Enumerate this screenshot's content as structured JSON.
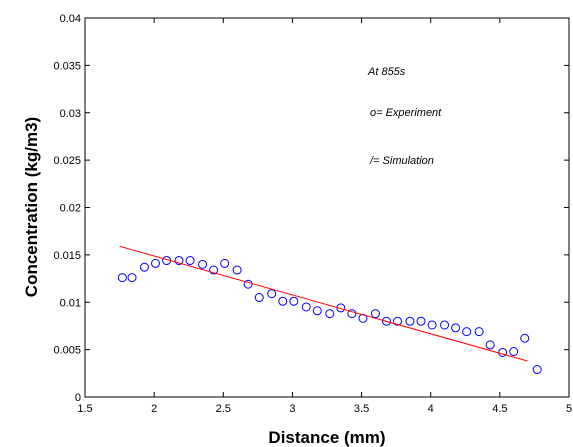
{
  "chart_data": {
    "type": "scatter",
    "title": "",
    "xlabel": "Distance (mm)",
    "ylabel": "Concentration (kg/m3)",
    "xlim": [
      1.5,
      5
    ],
    "ylim": [
      0,
      0.04
    ],
    "x_ticks": [
      "1.5",
      "2",
      "2.5",
      "3",
      "3.5",
      "4",
      "4.5",
      "5"
    ],
    "y_ticks": [
      "0",
      "0.005",
      "0.01",
      "0.015",
      "0.02",
      "0.025",
      "0.03",
      "0.035",
      "0.04"
    ],
    "grid": false,
    "annotations": [
      "At 855s",
      "o= Experiment",
      "/= Simulation"
    ],
    "series": [
      {
        "name": "Experiment",
        "style": "markers",
        "marker": "circle",
        "color": "#0000ff",
        "points": [
          [
            1.77,
            0.0126
          ],
          [
            1.84,
            0.0126
          ],
          [
            1.93,
            0.0137
          ],
          [
            2.01,
            0.0141
          ],
          [
            2.09,
            0.0144
          ],
          [
            2.18,
            0.0144
          ],
          [
            2.26,
            0.0144
          ],
          [
            2.35,
            0.014
          ],
          [
            2.43,
            0.0134
          ],
          [
            2.51,
            0.0141
          ],
          [
            2.6,
            0.0134
          ],
          [
            2.68,
            0.0119
          ],
          [
            2.76,
            0.0105
          ],
          [
            2.85,
            0.0109
          ],
          [
            2.93,
            0.0101
          ],
          [
            3.01,
            0.0101
          ],
          [
            3.1,
            0.0095
          ],
          [
            3.18,
            0.0091
          ],
          [
            3.27,
            0.0088
          ],
          [
            3.35,
            0.0094
          ],
          [
            3.43,
            0.0088
          ],
          [
            3.51,
            0.0083
          ],
          [
            3.6,
            0.0088
          ],
          [
            3.68,
            0.008
          ],
          [
            3.76,
            0.008
          ],
          [
            3.85,
            0.008
          ],
          [
            3.93,
            0.008
          ],
          [
            4.01,
            0.0076
          ],
          [
            4.1,
            0.0076
          ],
          [
            4.18,
            0.0073
          ],
          [
            4.26,
            0.0069
          ],
          [
            4.35,
            0.0069
          ],
          [
            4.43,
            0.0055
          ],
          [
            4.52,
            0.0047
          ],
          [
            4.6,
            0.0048
          ],
          [
            4.68,
            0.0062
          ],
          [
            4.77,
            0.0029
          ]
        ]
      },
      {
        "name": "Simulation",
        "style": "line",
        "color": "#ff0000",
        "points": [
          [
            1.75,
            0.0159
          ],
          [
            4.7,
            0.0038
          ]
        ]
      }
    ]
  }
}
